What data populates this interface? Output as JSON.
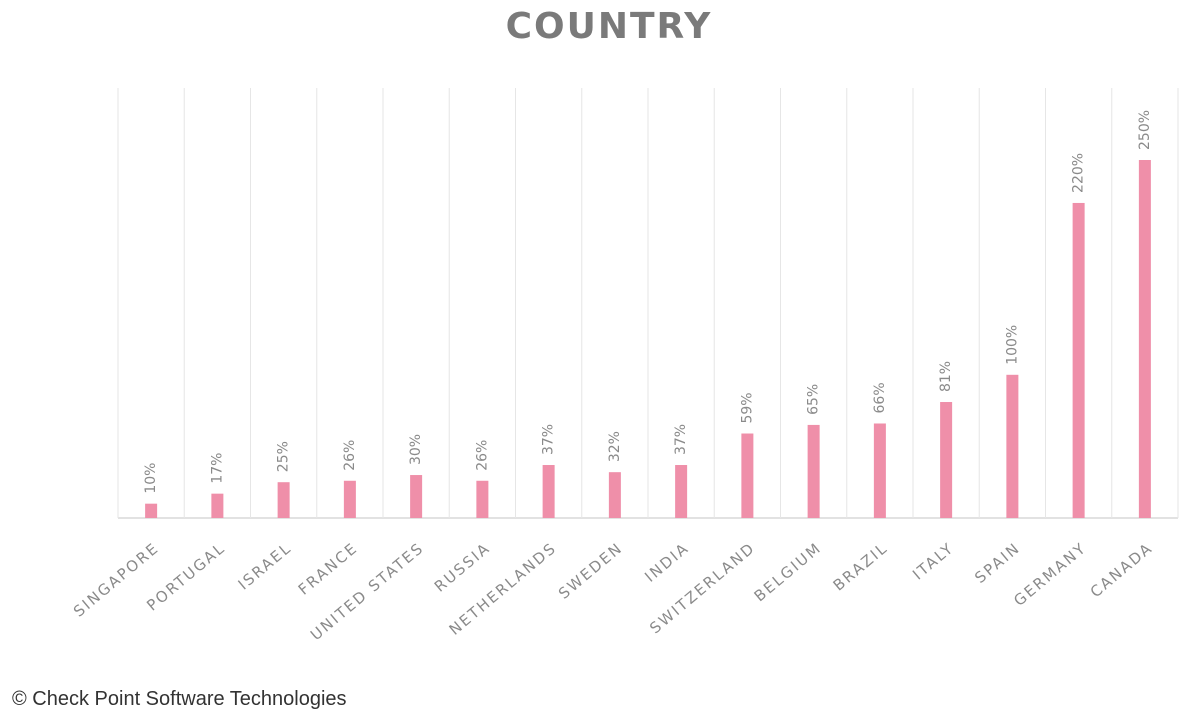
{
  "chart_data": {
    "type": "bar",
    "title": "COUNTRY",
    "categories": [
      "SINGAPORE",
      "PORTUGAL",
      "ISRAEL",
      "FRANCE",
      "UNITED STATES",
      "RUSSIA",
      "NETHERLANDS",
      "SWEDEN",
      "INDIA",
      "SWITZERLAND",
      "BELGIUM",
      "BRAZIL",
      "ITALY",
      "SPAIN",
      "GERMANY",
      "CANADA"
    ],
    "values": [
      10,
      17,
      25,
      26,
      30,
      26,
      37,
      32,
      37,
      59,
      65,
      66,
      81,
      100,
      220,
      250
    ],
    "value_labels": [
      "10%",
      "17%",
      "25%",
      "26%",
      "30%",
      "26%",
      "37%",
      "32%",
      "37%",
      "59%",
      "65%",
      "66%",
      "81%",
      "100%",
      "220%",
      "250%"
    ],
    "color": "#ef8fa9"
  },
  "credit": "© Check Point Software Technologies"
}
